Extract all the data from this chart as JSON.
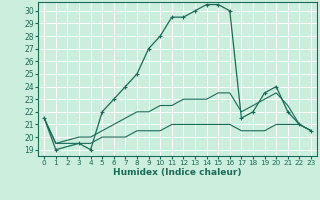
{
  "xlabel": "Humidex (Indice chaleur)",
  "bg_color": "#cceedd",
  "grid_color": "#ffffff",
  "line_color": "#1a6b5a",
  "xlim": [
    -0.5,
    23.5
  ],
  "ylim": [
    18.5,
    30.7
  ],
  "xticks": [
    0,
    1,
    2,
    3,
    4,
    5,
    6,
    7,
    8,
    9,
    10,
    11,
    12,
    13,
    14,
    15,
    16,
    17,
    18,
    19,
    20,
    21,
    22,
    23
  ],
  "yticks": [
    19,
    20,
    21,
    22,
    23,
    24,
    25,
    26,
    27,
    28,
    29,
    30
  ],
  "series1": [
    [
      0,
      21.5
    ],
    [
      1,
      19.0
    ],
    [
      3,
      19.5
    ],
    [
      4,
      19.0
    ],
    [
      5,
      22.0
    ],
    [
      6,
      23.0
    ],
    [
      7,
      24.0
    ],
    [
      8,
      25.0
    ],
    [
      9,
      27.0
    ],
    [
      10,
      28.0
    ],
    [
      11,
      29.5
    ],
    [
      12,
      29.5
    ],
    [
      13,
      30.0
    ],
    [
      14,
      30.5
    ],
    [
      15,
      30.5
    ],
    [
      16,
      30.0
    ],
    [
      17,
      21.5
    ],
    [
      18,
      22.0
    ],
    [
      19,
      23.5
    ],
    [
      20,
      24.0
    ],
    [
      21,
      22.0
    ],
    [
      22,
      21.0
    ],
    [
      23,
      20.5
    ]
  ],
  "series2": [
    [
      0,
      21.5
    ],
    [
      1,
      19.5
    ],
    [
      3,
      20.0
    ],
    [
      4,
      20.0
    ],
    [
      5,
      20.5
    ],
    [
      6,
      21.0
    ],
    [
      7,
      21.5
    ],
    [
      8,
      22.0
    ],
    [
      9,
      22.0
    ],
    [
      10,
      22.5
    ],
    [
      11,
      22.5
    ],
    [
      12,
      23.0
    ],
    [
      13,
      23.0
    ],
    [
      14,
      23.0
    ],
    [
      15,
      23.5
    ],
    [
      16,
      23.5
    ],
    [
      17,
      22.0
    ],
    [
      18,
      22.5
    ],
    [
      19,
      23.0
    ],
    [
      20,
      23.5
    ],
    [
      21,
      22.5
    ],
    [
      22,
      21.0
    ],
    [
      23,
      20.5
    ]
  ],
  "series3": [
    [
      0,
      21.5
    ],
    [
      1,
      19.5
    ],
    [
      3,
      19.5
    ],
    [
      4,
      19.5
    ],
    [
      5,
      20.0
    ],
    [
      6,
      20.0
    ],
    [
      7,
      20.0
    ],
    [
      8,
      20.5
    ],
    [
      9,
      20.5
    ],
    [
      10,
      20.5
    ],
    [
      11,
      21.0
    ],
    [
      12,
      21.0
    ],
    [
      13,
      21.0
    ],
    [
      14,
      21.0
    ],
    [
      15,
      21.0
    ],
    [
      16,
      21.0
    ],
    [
      17,
      20.5
    ],
    [
      18,
      20.5
    ],
    [
      19,
      20.5
    ],
    [
      20,
      21.0
    ],
    [
      21,
      21.0
    ],
    [
      22,
      21.0
    ],
    [
      23,
      20.5
    ]
  ]
}
